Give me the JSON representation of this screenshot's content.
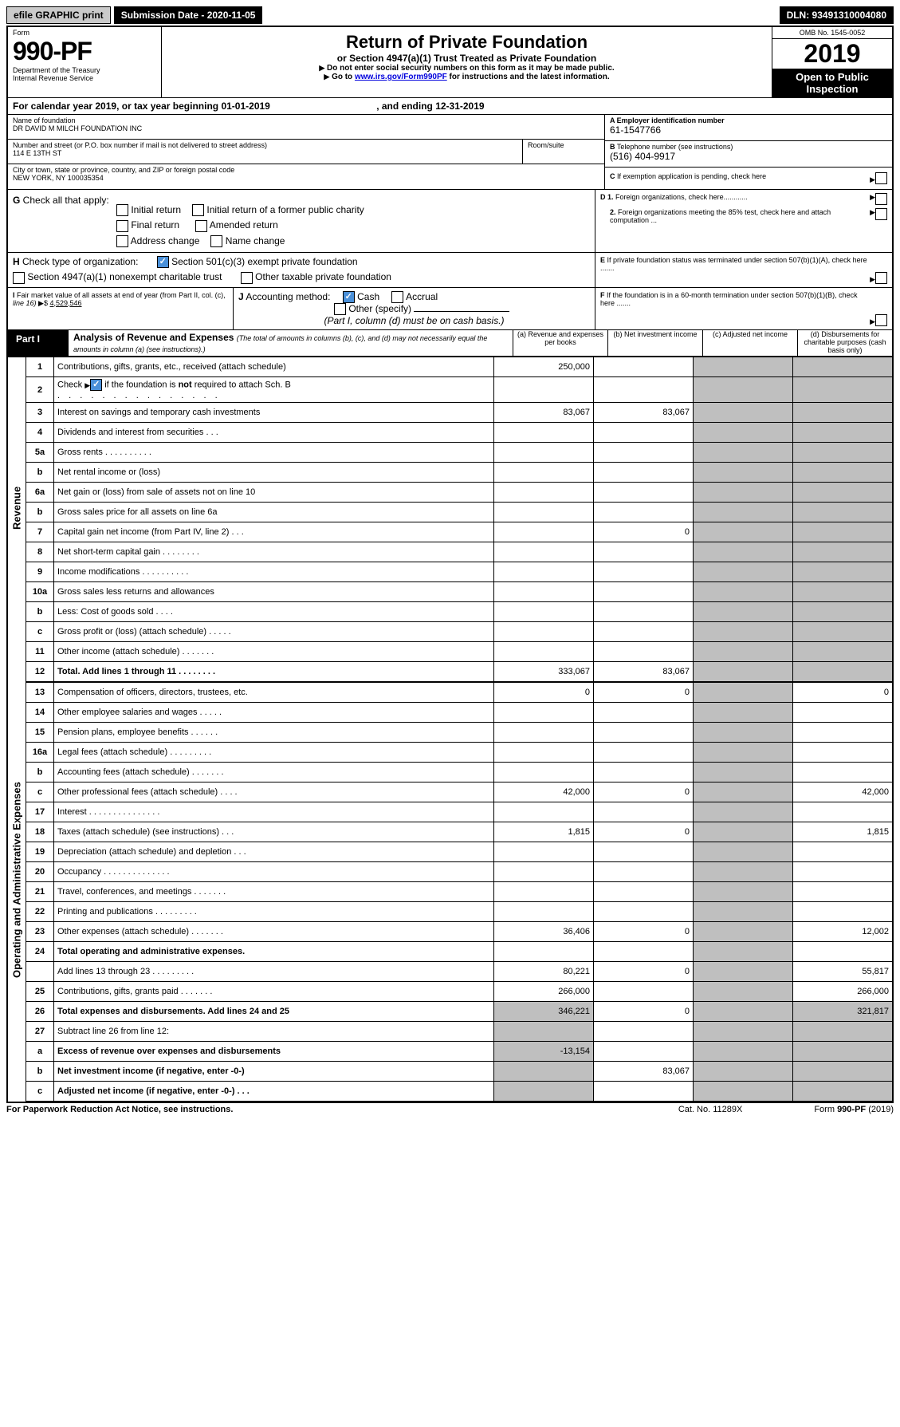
{
  "toolbar": {
    "efile": "efile GRAPHIC print",
    "submission": "Submission Date - 2020-11-05",
    "dln": "DLN: 93491310004080"
  },
  "hdr": {
    "form": "Form",
    "num": "990-PF",
    "dept": "Department of the Treasury",
    "irs": "Internal Revenue Service",
    "title": "Return of Private Foundation",
    "sub": "or Section 4947(a)(1) Trust Treated as Private Foundation",
    "note1": "Do not enter social security numbers on this form as it may be made public.",
    "note2_a": "Go to ",
    "note2_link": "www.irs.gov/Form990PF",
    "note2_b": " for instructions and the latest information.",
    "omb": "OMB No. 1545-0052",
    "year": "2019",
    "open": "Open to Public Inspection"
  },
  "cal": {
    "pre": "For calendar year 2019, or tax year beginning ",
    "begin": "01-01-2019",
    "mid": ", and ending ",
    "end": "12-31-2019"
  },
  "id": {
    "name_lbl": "Name of foundation",
    "name": "DR DAVID M MILCH FOUNDATION INC",
    "addr_lbl": "Number and street (or P.O. box number if mail is not delivered to street address)",
    "room_lbl": "Room/suite",
    "addr": "114 E 13TH ST",
    "city_lbl": "City or town, state or province, country, and ZIP or foreign postal code",
    "city": "NEW YORK, NY  100035354",
    "a_lbl": "A Employer identification number",
    "a": "61-1547766",
    "b_lbl": "B",
    "b_txt": " Telephone number (see instructions)",
    "b": "(516) 404-9917",
    "c_lbl": "C",
    "c_txt": " If exemption application is pending, check here"
  },
  "g": {
    "lbl": "G",
    "txt": " Check all that apply:",
    "initial": "Initial return",
    "final": "Final return",
    "address": "Address change",
    "iformer": "Initial return of a former public charity",
    "amended": "Amended return",
    "namec": "Name change"
  },
  "d": {
    "lbl": "D 1.",
    "txt": " Foreign organizations, check here............",
    "d2": "2.",
    "d2txt": " Foreign organizations meeting the 85% test, check here and attach computation ..."
  },
  "e": {
    "lbl": "E",
    "txt": " If private foundation status was terminated under section 507(b)(1)(A), check here ......."
  },
  "f": {
    "lbl": "F",
    "txt": " If the foundation is in a 60-month termination under section 507(b)(1)(B), check here ......."
  },
  "h": {
    "lbl": "H",
    "txt": " Check type of organization:",
    "o1": "Section 501(c)(3) exempt private foundation",
    "o2": "Section 4947(a)(1) nonexempt charitable trust",
    "o3": "Other taxable private foundation"
  },
  "i": {
    "lbl": "I",
    "txt": " Fair market value of all assets at end of year (from Part II, col. (c), ",
    "line": "line 16)",
    "amt": "4,529,546"
  },
  "j": {
    "lbl": "J",
    "txt": " Accounting method:",
    "cash": "Cash",
    "accrual": "Accrual",
    "other": "Other (specify)",
    "note": "(Part I, column (d) must be on cash basis.)"
  },
  "part1": {
    "lbl": "Part I",
    "title": "Analysis of Revenue and Expenses",
    "note": " (The total of amounts in columns (b), (c), and (d) may not necessarily equal the amounts in column (a) (see instructions).)",
    "cols": {
      "a": "(a)  Revenue and expenses per books",
      "b": "(b)  Net investment income",
      "c": "(c)  Adjusted net income",
      "d": "(d)  Disbursements for charitable purposes (cash basis only)"
    }
  },
  "sec": {
    "rev": "Revenue",
    "oae": "Operating and Administrative Expenses"
  },
  "rows": [
    {
      "n": "1",
      "t": "Contributions, gifts, grants, etc., received (attach schedule)",
      "a": "250,000"
    },
    {
      "n": "2",
      "t": "Check",
      "t2": " if the foundation is ",
      "not": "not",
      "t3": " required to attach Sch. B"
    },
    {
      "n": "3",
      "t": "Interest on savings and temporary cash investments",
      "a": "83,067",
      "b": "83,067"
    },
    {
      "n": "4",
      "t": "Dividends and interest from securities   .   .   ."
    },
    {
      "n": "5a",
      "t": "Gross rents   .   .   .   .   .   .   .   .   .   ."
    },
    {
      "n": "b",
      "t": "Net rental income or (loss)"
    },
    {
      "n": "6a",
      "t": "Net gain or (loss) from sale of assets not on line 10"
    },
    {
      "n": "b",
      "t": "Gross sales price for all assets on line 6a"
    },
    {
      "n": "7",
      "t": "Capital gain net income (from Part IV, line 2)   .   .   .",
      "b": "0"
    },
    {
      "n": "8",
      "t": "Net short-term capital gain   .   .   .   .   .   .   .   ."
    },
    {
      "n": "9",
      "t": "Income modifications   .   .   .   .   .   .   .   .   .   ."
    },
    {
      "n": "10a",
      "t": "Gross sales less returns and allowances"
    },
    {
      "n": "b",
      "t": "Less: Cost of goods sold   .   .   .   ."
    },
    {
      "n": "c",
      "t": "Gross profit or (loss) (attach schedule)    .   .   .   .   ."
    },
    {
      "n": "11",
      "t": "Other income (attach schedule)   .   .   .   .   .   .   ."
    },
    {
      "n": "12",
      "t": "Total. Add lines 1 through 11   .   .   .   .   .   .   .   .",
      "a": "333,067",
      "b": "83,067",
      "bold": 1
    },
    {
      "n": "13",
      "t": "Compensation of officers, directors, trustees, etc.",
      "a": "0",
      "b": "0",
      "d": "0"
    },
    {
      "n": "14",
      "t": "Other employee salaries and wages   .   .   .   .   ."
    },
    {
      "n": "15",
      "t": "Pension plans, employee benefits   .   .   .   .   .   ."
    },
    {
      "n": "16a",
      "t": "Legal fees (attach schedule)  .   .   .   .   .   .   .   .   ."
    },
    {
      "n": "b",
      "t": "Accounting fees (attach schedule)   .   .   .   .   .   .   ."
    },
    {
      "n": "c",
      "t": "Other professional fees (attach schedule)   .   .   .   .",
      "a": "42,000",
      "b": "0",
      "d": "42,000"
    },
    {
      "n": "17",
      "t": "Interest   .   .   .   .   .   .   .   .   .   .   .   .   .   .   ."
    },
    {
      "n": "18",
      "t": "Taxes (attach schedule) (see instructions)    .   .   .",
      "a": "1,815",
      "b": "0",
      "d": "1,815"
    },
    {
      "n": "19",
      "t": "Depreciation (attach schedule) and depletion   .   .   ."
    },
    {
      "n": "20",
      "t": "Occupancy  .   .   .   .   .   .   .   .   .   .   .   .   .   ."
    },
    {
      "n": "21",
      "t": "Travel, conferences, and meetings  .   .   .   .   .   .   ."
    },
    {
      "n": "22",
      "t": "Printing and publications   .   .   .   .   .   .   .   .   ."
    },
    {
      "n": "23",
      "t": "Other expenses (attach schedule)   .   .   .   .   .   .   .",
      "a": "36,406",
      "b": "0",
      "d": "12,002"
    },
    {
      "n": "24",
      "t": "Total operating and administrative expenses.",
      "bold": 1
    },
    {
      "n": "",
      "t": "Add lines 13 through 23   .   .   .   .   .   .   .   .   .",
      "a": "80,221",
      "b": "0",
      "d": "55,817"
    },
    {
      "n": "25",
      "t": "Contributions, gifts, grants paid   .   .   .   .   .   .   .",
      "a": "266,000",
      "d": "266,000"
    },
    {
      "n": "26",
      "t": "Total expenses and disbursements. Add lines 24 and 25",
      "a": "346,221",
      "b": "0",
      "d": "321,817",
      "bold": 1
    },
    {
      "n": "27",
      "t": "Subtract line 26 from line 12:"
    },
    {
      "n": "a",
      "t": "Excess of revenue over expenses and disbursements",
      "a": "-13,154",
      "bold": 1
    },
    {
      "n": "b",
      "t": "Net investment income (if negative, enter -0-)",
      "b": "83,067",
      "bold": 1
    },
    {
      "n": "c",
      "t": "Adjusted net income (if negative, enter -0-)   .   .   .",
      "bold": 1
    }
  ],
  "foot": {
    "a": "For Paperwork Reduction Act Notice, see instructions.",
    "b": "Cat. No. 11289X",
    "c": "Form ",
    "d": "990-PF",
    "e": " (2019)"
  }
}
